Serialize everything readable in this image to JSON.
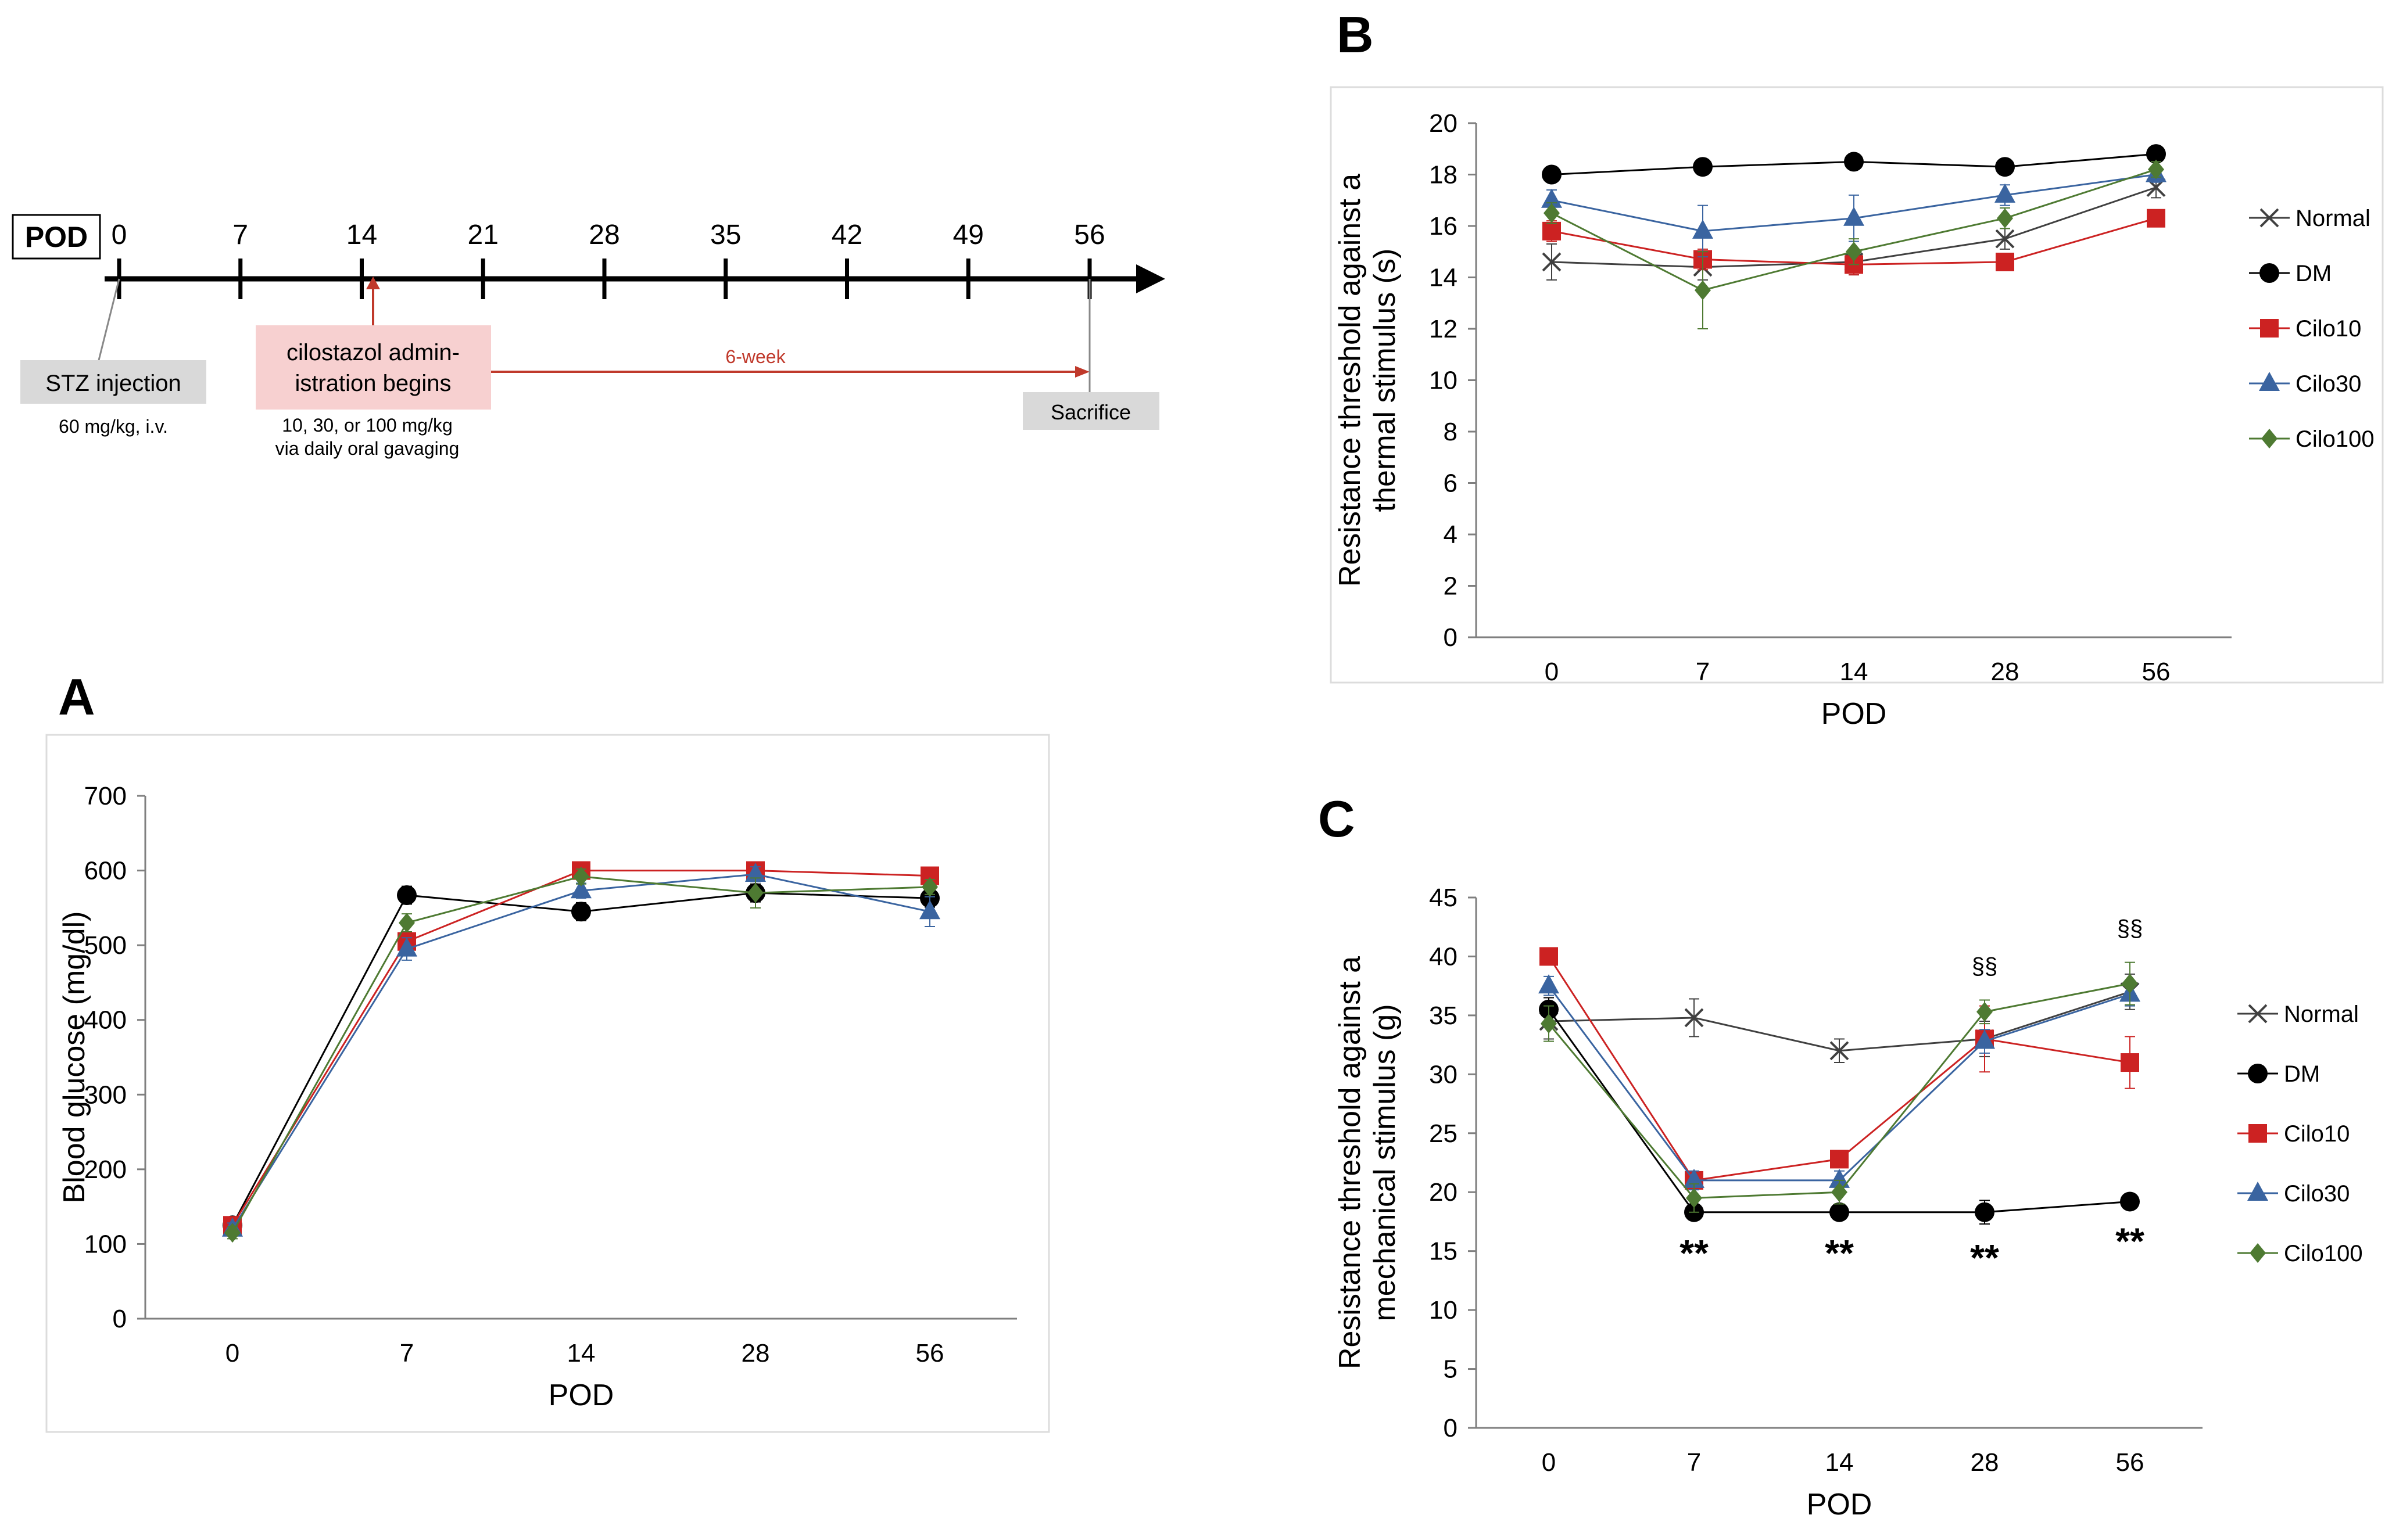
{
  "timeline": {
    "pod_label": "POD",
    "days": [
      "0",
      "7",
      "14",
      "21",
      "28",
      "35",
      "42",
      "49",
      "56"
    ],
    "stz_label": "STZ injection",
    "stz_dose": "60 mg/kg, i.v.",
    "cilo_label_line1": "cilostazol admin-",
    "cilo_label_line2": "istration begins",
    "cilo_dose_line1": "10, 30, or 100 mg/kg",
    "cilo_dose_line2": "via daily oral gavaging",
    "duration_label": "6-week",
    "sacrifice_label": "Sacrifice",
    "colors": {
      "red": "#c0392b",
      "stz_box": "#d9d9d9",
      "cilo_box": "#f7d0d0"
    }
  },
  "colors": {
    "Normal": "#404040",
    "DM": "#000000",
    "Cilo10": "#cc2222",
    "Cilo30": "#3a64a0",
    "Cilo100": "#4e7a32"
  },
  "chart_data": [
    {
      "panel": "A",
      "type": "line",
      "title": "",
      "xlabel": "POD",
      "ylabel": "Blood glucose (mg/dl)",
      "categories": [
        "0",
        "7",
        "14",
        "28",
        "56"
      ],
      "ylim": [
        0,
        700
      ],
      "yticks": [
        0,
        100,
        200,
        300,
        400,
        500,
        600,
        700
      ],
      "legend": "none",
      "series": [
        {
          "name": "DM",
          "marker": "circle",
          "values": [
            125,
            567,
            545,
            570,
            563
          ],
          "errors": [
            8,
            12,
            12,
            12,
            12
          ]
        },
        {
          "name": "Cilo10",
          "marker": "square",
          "values": [
            125,
            505,
            600,
            600,
            593
          ],
          "errors": [
            8,
            10,
            5,
            5,
            5
          ]
        },
        {
          "name": "Cilo30",
          "marker": "triangle",
          "values": [
            120,
            495,
            573,
            595,
            545
          ],
          "errors": [
            8,
            15,
            10,
            10,
            20
          ]
        },
        {
          "name": "Cilo100",
          "marker": "diamond",
          "values": [
            115,
            530,
            592,
            570,
            578
          ],
          "errors": [
            8,
            12,
            10,
            20,
            10
          ]
        }
      ]
    },
    {
      "panel": "B",
      "type": "line",
      "title": "",
      "xlabel": "POD",
      "ylabel_line1": "Resistance threshold against a",
      "ylabel_line2": "thermal stimulus (s)",
      "categories": [
        "0",
        "7",
        "14",
        "28",
        "56"
      ],
      "ylim": [
        0,
        20
      ],
      "yticks": [
        0,
        2,
        4,
        6,
        8,
        10,
        12,
        14,
        16,
        18,
        20
      ],
      "legend": "right",
      "series": [
        {
          "name": "Normal",
          "marker": "x",
          "values": [
            14.6,
            14.4,
            14.6,
            15.5,
            17.5
          ],
          "errors": [
            0.7,
            0.5,
            0.5,
            0.4,
            0.4
          ]
        },
        {
          "name": "DM",
          "marker": "circle",
          "values": [
            18.0,
            18.3,
            18.5,
            18.3,
            18.8
          ],
          "errors": [
            0.2,
            0.2,
            0.2,
            0.2,
            0.2
          ]
        },
        {
          "name": "Cilo10",
          "marker": "square",
          "values": [
            15.8,
            14.7,
            14.5,
            14.6,
            16.3
          ],
          "errors": [
            0.4,
            0.4,
            0.4,
            0.3,
            0.3
          ]
        },
        {
          "name": "Cilo30",
          "marker": "triangle",
          "values": [
            17.0,
            15.8,
            16.3,
            17.2,
            18.0
          ],
          "errors": [
            0.4,
            1.0,
            0.9,
            0.4,
            0.3
          ]
        },
        {
          "name": "Cilo100",
          "marker": "diamond",
          "values": [
            16.5,
            13.5,
            15.0,
            16.3,
            18.2
          ],
          "errors": [
            0.4,
            1.5,
            0.5,
            0.4,
            0.3
          ]
        }
      ]
    },
    {
      "panel": "C",
      "type": "line",
      "title": "",
      "xlabel": "POD",
      "ylabel_line1": "Resistance threshold against a",
      "ylabel_line2": "mechanical stimulus  (g)",
      "categories": [
        "0",
        "7",
        "14",
        "28",
        "56"
      ],
      "ylim": [
        0,
        45
      ],
      "yticks": [
        0,
        5,
        10,
        15,
        20,
        25,
        30,
        35,
        40,
        45
      ],
      "legend": "right",
      "series": [
        {
          "name": "Normal",
          "marker": "x",
          "values": [
            34.5,
            34.8,
            32.0,
            33.0,
            37.0
          ],
          "errors": [
            1.5,
            1.6,
            1.0,
            1.5,
            1.5
          ]
        },
        {
          "name": "DM",
          "marker": "circle",
          "values": [
            35.5,
            18.3,
            18.3,
            18.3,
            19.2
          ],
          "errors": [
            1.0,
            0.6,
            0.6,
            1.0,
            0.5
          ]
        },
        {
          "name": "Cilo10",
          "marker": "square",
          "values": [
            40.0,
            21.0,
            22.8,
            33.0,
            31.0
          ],
          "errors": [
            0.6,
            0.6,
            0.6,
            2.8,
            2.2
          ]
        },
        {
          "name": "Cilo30",
          "marker": "triangle",
          "values": [
            37.5,
            21.0,
            21.0,
            32.8,
            36.8
          ],
          "errors": [
            0.8,
            0.8,
            0.8,
            1.0,
            1.0
          ]
        },
        {
          "name": "Cilo100",
          "marker": "diamond",
          "values": [
            34.3,
            19.5,
            20.0,
            35.3,
            37.7
          ],
          "errors": [
            1.5,
            1.2,
            1.0,
            1.0,
            1.8
          ]
        }
      ],
      "annotations": [
        {
          "category": "7",
          "text": "**",
          "position": "below"
        },
        {
          "category": "14",
          "text": "**",
          "position": "below"
        },
        {
          "category": "28",
          "text": "**",
          "position": "below"
        },
        {
          "category": "56",
          "text": "**",
          "position": "below"
        },
        {
          "category": "28",
          "text": "§§",
          "position": "above"
        },
        {
          "category": "56",
          "text": "§§",
          "position": "above"
        }
      ]
    }
  ]
}
